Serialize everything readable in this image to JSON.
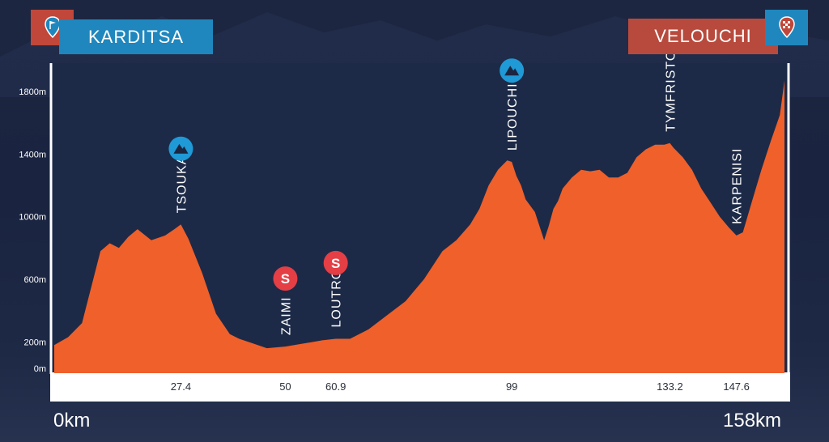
{
  "start": {
    "name": "KARDITSA",
    "icon": "start-flag-icon",
    "color": "#1f87bd"
  },
  "finish": {
    "name": "VELOUCHI",
    "icon": "finish-flag-icon",
    "color": "#b84a3d"
  },
  "distance_start_label": "0km",
  "distance_end_label": "158km",
  "colors": {
    "profile": "#f0602a",
    "panel": "#1d2a47",
    "climb": "#1f9ad6",
    "sprint": "#e53e45"
  },
  "chart_data": {
    "type": "area",
    "xlim": [
      0,
      158
    ],
    "ylim": [
      0,
      2100
    ],
    "yticks": [
      {
        "value": 0,
        "label": "0m"
      },
      {
        "value": 200,
        "label": "200m"
      },
      {
        "value": 600,
        "label": "600m"
      },
      {
        "value": 1000,
        "label": "1000m"
      },
      {
        "value": 1400,
        "label": "1400m"
      },
      {
        "value": 1800,
        "label": "1800m"
      }
    ],
    "x": [
      0,
      3,
      6,
      8,
      10,
      12,
      14,
      16,
      18,
      21,
      24,
      26,
      27.4,
      29,
      32,
      35,
      38,
      40,
      43,
      46,
      50,
      54,
      58,
      60.9,
      64,
      68,
      72,
      76,
      80,
      84,
      87,
      90,
      92,
      94,
      96,
      97,
      98,
      99,
      100,
      101,
      102,
      104,
      106,
      107,
      108,
      109,
      110,
      112,
      114,
      116,
      118,
      120,
      122,
      124,
      126,
      128,
      130,
      132,
      133.2,
      134,
      136,
      138,
      140,
      142,
      144,
      146,
      147.6,
      149,
      151,
      153,
      155,
      157,
      158
    ],
    "elevation": [
      180,
      230,
      320,
      550,
      780,
      830,
      800,
      870,
      920,
      850,
      880,
      920,
      950,
      860,
      640,
      380,
      250,
      220,
      190,
      160,
      170,
      190,
      210,
      220,
      220,
      280,
      370,
      460,
      600,
      780,
      850,
      950,
      1050,
      1200,
      1300,
      1330,
      1360,
      1350,
      1260,
      1200,
      1110,
      1030,
      850,
      940,
      1050,
      1100,
      1180,
      1250,
      1300,
      1290,
      1300,
      1250,
      1250,
      1280,
      1380,
      1430,
      1460,
      1460,
      1470,
      1440,
      1380,
      1300,
      1180,
      1090,
      1000,
      930,
      880,
      900,
      1100,
      1300,
      1480,
      1650,
      1870
    ],
    "xticks": [
      {
        "value": 27.4,
        "label": "27.4"
      },
      {
        "value": 50,
        "label": "50"
      },
      {
        "value": 60.9,
        "label": "60.9"
      },
      {
        "value": 99,
        "label": "99"
      },
      {
        "value": 133.2,
        "label": "133.2"
      },
      {
        "value": 147.6,
        "label": "147.6"
      }
    ],
    "annotations": [
      {
        "km": 27.4,
        "label": "TSOUKA",
        "marker": "climb"
      },
      {
        "km": 50,
        "label": "ZAIMI",
        "marker": "sprint",
        "marker_text": "S"
      },
      {
        "km": 60.9,
        "label": "LOUTRO",
        "marker": "sprint",
        "marker_text": "S"
      },
      {
        "km": 99,
        "label": "LIPOUCHI",
        "marker": "climb"
      },
      {
        "km": 133.2,
        "label": "TYMFRISTOS",
        "marker": "climb"
      },
      {
        "km": 147.6,
        "label": "KARPENISI",
        "marker": "none"
      }
    ]
  }
}
